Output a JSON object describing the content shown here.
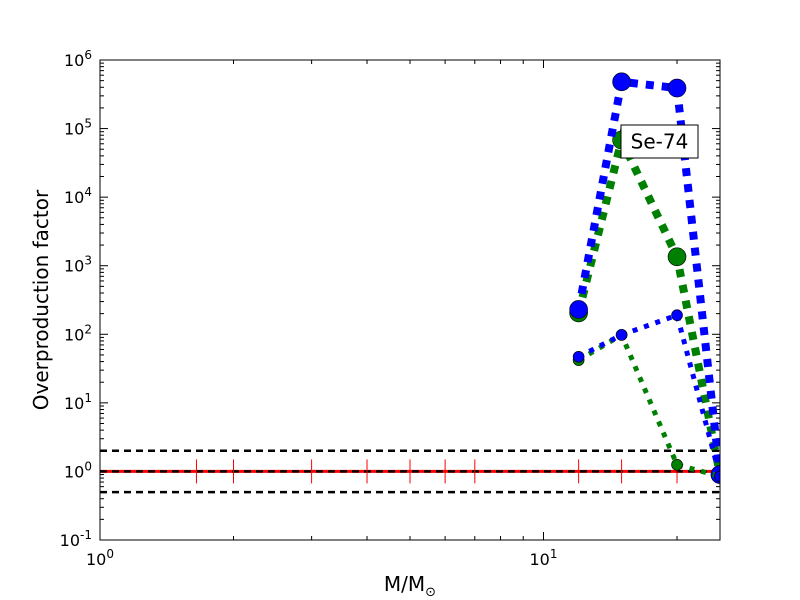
{
  "chart_data": {
    "type": "line",
    "xlabel": "M/M",
    "xlabel_subscript": "⊙",
    "ylabel": "Overproduction factor",
    "xscale": "log",
    "yscale": "log",
    "xlim": [
      1,
      25
    ],
    "ylim": [
      0.1,
      1000000
    ],
    "x_ticks": [
      {
        "value": 1,
        "base": "10",
        "exp": "0"
      },
      {
        "value": 10,
        "base": "10",
        "exp": "1"
      }
    ],
    "y_ticks": [
      {
        "value": 0.1,
        "base": "10",
        "exp": "-1"
      },
      {
        "value": 1,
        "base": "10",
        "exp": "0"
      },
      {
        "value": 10,
        "base": "10",
        "exp": "1"
      },
      {
        "value": 100,
        "base": "10",
        "exp": "2"
      },
      {
        "value": 1000,
        "base": "10",
        "exp": "3"
      },
      {
        "value": 10000,
        "base": "10",
        "exp": "4"
      },
      {
        "value": 100000,
        "base": "10",
        "exp": "5"
      },
      {
        "value": 1000000,
        "base": "10",
        "exp": "6"
      }
    ],
    "grid": false,
    "annotation": "Se-74",
    "series": [
      {
        "color": "#0000ff",
        "style": "thick-dotted",
        "marker": "large-circle",
        "x": [
          12,
          15,
          20,
          25
        ],
        "y": [
          230,
          480000,
          390000,
          0.9
        ]
      },
      {
        "color": "#008000",
        "style": "thick-dotted",
        "marker": "large-circle",
        "x": [
          12,
          15,
          20,
          25
        ],
        "y": [
          205,
          68000,
          1350,
          0.9
        ]
      },
      {
        "color": "#0000ff",
        "style": "thin-dotted",
        "marker": "small-circle",
        "x": [
          12,
          15,
          20,
          25
        ],
        "y": [
          47,
          98,
          190,
          0.85
        ]
      },
      {
        "color": "#008000",
        "style": "thin-dotted",
        "marker": "small-circle",
        "x": [
          12,
          15,
          20,
          25
        ],
        "y": [
          42,
          98,
          1.25,
          0.85
        ]
      }
    ],
    "reference_lines": [
      {
        "y": 1,
        "color": "#ff0000",
        "style": "solid"
      },
      {
        "y": 2,
        "color": "#000000",
        "style": "dashed"
      },
      {
        "y": 1,
        "color": "#000000",
        "style": "dashed"
      },
      {
        "y": 0.5,
        "color": "#000000",
        "style": "dashed"
      }
    ],
    "reference_markers": {
      "y": 1,
      "color": "#ff0000",
      "x": [
        1.65,
        2,
        3,
        4,
        5,
        6,
        7,
        12,
        15,
        20
      ]
    }
  }
}
